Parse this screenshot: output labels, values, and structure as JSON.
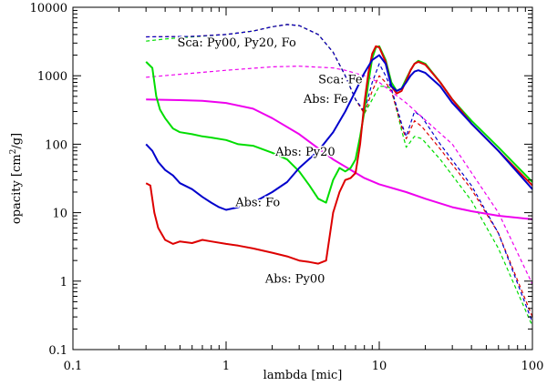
{
  "chart_data": {
    "type": "line",
    "title": "",
    "xlabel": "lambda [mic]",
    "ylabel_prefix": "opacity [cm",
    "ylabel_sup": "2",
    "ylabel_suffix": "/g]",
    "xscale": "log",
    "yscale": "log",
    "xlim": [
      0.1,
      100
    ],
    "ylim": [
      0.1,
      10000
    ],
    "xticks": [
      {
        "value": 0.1,
        "label": "0.1"
      },
      {
        "value": 1,
        "label": "1"
      },
      {
        "value": 10,
        "label": "10"
      },
      {
        "value": 100,
        "label": "100"
      }
    ],
    "yticks": [
      {
        "value": 0.1,
        "label": "0.1"
      },
      {
        "value": 1,
        "label": "1"
      },
      {
        "value": 10,
        "label": "10"
      },
      {
        "value": 100,
        "label": "100"
      },
      {
        "value": 1000,
        "label": "1000"
      },
      {
        "value": 10000,
        "label": "10000"
      }
    ],
    "grid": false,
    "legend": "none (inline annotations)",
    "series": [
      {
        "name": "Sca: Py20",
        "color": "#00dd00",
        "dash": true,
        "points": [
          [
            0.3,
            3200
          ],
          [
            0.4,
            3450
          ],
          [
            0.6,
            3700
          ],
          [
            1,
            4000
          ],
          [
            1.5,
            4500
          ],
          [
            2,
            5200
          ],
          [
            2.5,
            5600
          ],
          [
            3,
            5400
          ],
          [
            4,
            4000
          ],
          [
            5,
            2200
          ],
          [
            6,
            1000
          ],
          [
            7,
            450
          ],
          [
            8,
            280
          ],
          [
            9,
            450
          ],
          [
            10,
            700
          ],
          [
            11,
            700
          ],
          [
            12,
            650
          ],
          [
            14,
            160
          ],
          [
            15,
            90
          ],
          [
            17,
            130
          ],
          [
            19,
            120
          ],
          [
            25,
            60
          ],
          [
            40,
            15
          ],
          [
            60,
            3
          ],
          [
            100,
            0.22
          ]
        ]
      },
      {
        "name": "Sca: Py00",
        "color": "#dd0000",
        "dash": true,
        "points": [
          [
            0.3,
            3700
          ],
          [
            0.6,
            3750
          ],
          [
            1,
            4000
          ],
          [
            1.5,
            4500
          ],
          [
            2,
            5200
          ],
          [
            2.5,
            5600
          ],
          [
            3,
            5400
          ],
          [
            4,
            4000
          ],
          [
            5,
            2200
          ],
          [
            6,
            1000
          ],
          [
            7,
            450
          ],
          [
            8,
            280
          ],
          [
            9,
            600
          ],
          [
            10,
            1000
          ],
          [
            11,
            800
          ],
          [
            12,
            600
          ],
          [
            14,
            180
          ],
          [
            15,
            120
          ],
          [
            17,
            220
          ],
          [
            19,
            180
          ],
          [
            25,
            85
          ],
          [
            40,
            22
          ],
          [
            60,
            5
          ],
          [
            100,
            0.3
          ]
        ]
      },
      {
        "name": "Sca: Fo",
        "color": "#0000cc",
        "dash": true,
        "points": [
          [
            0.3,
            3700
          ],
          [
            0.6,
            3750
          ],
          [
            1,
            4000
          ],
          [
            1.5,
            4500
          ],
          [
            2,
            5200
          ],
          [
            2.5,
            5600
          ],
          [
            3,
            5400
          ],
          [
            4,
            4000
          ],
          [
            5,
            2200
          ],
          [
            6,
            1000
          ],
          [
            7,
            450
          ],
          [
            8,
            300
          ],
          [
            9,
            800
          ],
          [
            10,
            1500
          ],
          [
            11,
            1000
          ],
          [
            12,
            650
          ],
          [
            14,
            200
          ],
          [
            15,
            130
          ],
          [
            17,
            300
          ],
          [
            19,
            250
          ],
          [
            25,
            100
          ],
          [
            40,
            25
          ],
          [
            60,
            5
          ],
          [
            100,
            0.25
          ]
        ]
      },
      {
        "name": "Sca: Fe",
        "color": "#ee00ee",
        "dash": true,
        "points": [
          [
            0.3,
            950
          ],
          [
            0.5,
            1050
          ],
          [
            1,
            1200
          ],
          [
            2,
            1350
          ],
          [
            3,
            1380
          ],
          [
            5,
            1300
          ],
          [
            6,
            1200
          ],
          [
            8,
            1000
          ],
          [
            10,
            800
          ],
          [
            15,
            400
          ],
          [
            30,
            100
          ],
          [
            60,
            10
          ],
          [
            100,
            0.9
          ]
        ]
      },
      {
        "name": "Abs: Fe",
        "color": "#ee00ee",
        "dash": false,
        "points": [
          [
            0.3,
            450
          ],
          [
            0.5,
            440
          ],
          [
            0.7,
            430
          ],
          [
            1,
            400
          ],
          [
            1.5,
            330
          ],
          [
            2,
            240
          ],
          [
            3,
            140
          ],
          [
            5,
            60
          ],
          [
            8,
            32
          ],
          [
            10,
            26
          ],
          [
            15,
            20
          ],
          [
            20,
            16
          ],
          [
            30,
            12
          ],
          [
            40,
            10.5
          ],
          [
            60,
            9
          ],
          [
            100,
            8
          ]
        ]
      },
      {
        "name": "Abs: Py20",
        "color": "#00dd00",
        "dash": false,
        "points": [
          [
            0.3,
            1600
          ],
          [
            0.33,
            1300
          ],
          [
            0.35,
            500
          ],
          [
            0.37,
            320
          ],
          [
            0.4,
            240
          ],
          [
            0.45,
            170
          ],
          [
            0.5,
            150
          ],
          [
            0.6,
            140
          ],
          [
            0.7,
            130
          ],
          [
            0.8,
            125
          ],
          [
            1,
            115
          ],
          [
            1.2,
            100
          ],
          [
            1.5,
            95
          ],
          [
            2,
            75
          ],
          [
            2.5,
            60
          ],
          [
            3,
            40
          ],
          [
            3.5,
            25
          ],
          [
            4,
            16
          ],
          [
            4.5,
            14
          ],
          [
            5,
            30
          ],
          [
            5.5,
            45
          ],
          [
            6,
            40
          ],
          [
            6.5,
            45
          ],
          [
            7,
            60
          ],
          [
            7.5,
            130
          ],
          [
            8,
            300
          ],
          [
            8.5,
            800
          ],
          [
            9,
            1800
          ],
          [
            9.5,
            2600
          ],
          [
            10,
            2700
          ],
          [
            11,
            1700
          ],
          [
            12,
            800
          ],
          [
            13,
            600
          ],
          [
            14,
            650
          ],
          [
            15,
            900
          ],
          [
            16,
            1200
          ],
          [
            17,
            1500
          ],
          [
            18,
            1650
          ],
          [
            20,
            1500
          ],
          [
            25,
            800
          ],
          [
            30,
            450
          ],
          [
            40,
            220
          ],
          [
            60,
            90
          ],
          [
            100,
            28
          ]
        ]
      },
      {
        "name": "Abs: Py00",
        "color": "#dd0000",
        "dash": false,
        "points": [
          [
            0.3,
            27
          ],
          [
            0.32,
            25
          ],
          [
            0.34,
            10
          ],
          [
            0.36,
            6
          ],
          [
            0.4,
            4
          ],
          [
            0.45,
            3.5
          ],
          [
            0.5,
            3.8
          ],
          [
            0.6,
            3.6
          ],
          [
            0.7,
            4
          ],
          [
            0.8,
            3.8
          ],
          [
            1,
            3.5
          ],
          [
            1.2,
            3.3
          ],
          [
            1.5,
            3
          ],
          [
            2,
            2.6
          ],
          [
            2.5,
            2.3
          ],
          [
            3,
            2
          ],
          [
            3.5,
            1.9
          ],
          [
            4,
            1.8
          ],
          [
            4.5,
            2
          ],
          [
            5,
            10
          ],
          [
            5.5,
            20
          ],
          [
            6,
            30
          ],
          [
            6.5,
            32
          ],
          [
            7,
            38
          ],
          [
            7.5,
            100
          ],
          [
            8,
            400
          ],
          [
            8.5,
            1100
          ],
          [
            9,
            2100
          ],
          [
            9.5,
            2700
          ],
          [
            10,
            2600
          ],
          [
            11,
            1600
          ],
          [
            12,
            700
          ],
          [
            13,
            550
          ],
          [
            14,
            600
          ],
          [
            15,
            850
          ],
          [
            16,
            1200
          ],
          [
            17,
            1500
          ],
          [
            18,
            1600
          ],
          [
            20,
            1450
          ],
          [
            25,
            800
          ],
          [
            30,
            450
          ],
          [
            40,
            200
          ],
          [
            60,
            80
          ],
          [
            100,
            25
          ]
        ]
      },
      {
        "name": "Abs: Fo",
        "color": "#0000cc",
        "dash": false,
        "points": [
          [
            0.3,
            100
          ],
          [
            0.33,
            80
          ],
          [
            0.36,
            55
          ],
          [
            0.4,
            42
          ],
          [
            0.45,
            35
          ],
          [
            0.5,
            27
          ],
          [
            0.6,
            22
          ],
          [
            0.7,
            17
          ],
          [
            0.8,
            14
          ],
          [
            0.9,
            12
          ],
          [
            1,
            11
          ],
          [
            1.2,
            12
          ],
          [
            1.5,
            14
          ],
          [
            2,
            20
          ],
          [
            2.5,
            28
          ],
          [
            3,
            45
          ],
          [
            4,
            80
          ],
          [
            5,
            150
          ],
          [
            6,
            300
          ],
          [
            7,
            600
          ],
          [
            8,
            1100
          ],
          [
            9,
            1700
          ],
          [
            10,
            2000
          ],
          [
            11,
            1500
          ],
          [
            12,
            700
          ],
          [
            13,
            600
          ],
          [
            14,
            650
          ],
          [
            15,
            800
          ],
          [
            16,
            1000
          ],
          [
            17,
            1150
          ],
          [
            18,
            1200
          ],
          [
            20,
            1100
          ],
          [
            25,
            700
          ],
          [
            30,
            400
          ],
          [
            40,
            200
          ],
          [
            60,
            80
          ],
          [
            100,
            22
          ]
        ]
      }
    ],
    "annotations": [
      {
        "text": "Sca: Py00, Py20, Fo",
        "at": [
          0.48,
          2700
        ]
      },
      {
        "text": "Sca: Fe",
        "at": [
          4.0,
          780
        ]
      },
      {
        "text": "Abs: Fe",
        "at": [
          3.2,
          400
        ]
      },
      {
        "text": "Abs: Py20",
        "at": [
          2.1,
          68
        ]
      },
      {
        "text": "Abs: Fo",
        "at": [
          1.15,
          12.5
        ]
      },
      {
        "text": "Abs: Py00",
        "at": [
          1.8,
          0.95
        ]
      }
    ]
  }
}
